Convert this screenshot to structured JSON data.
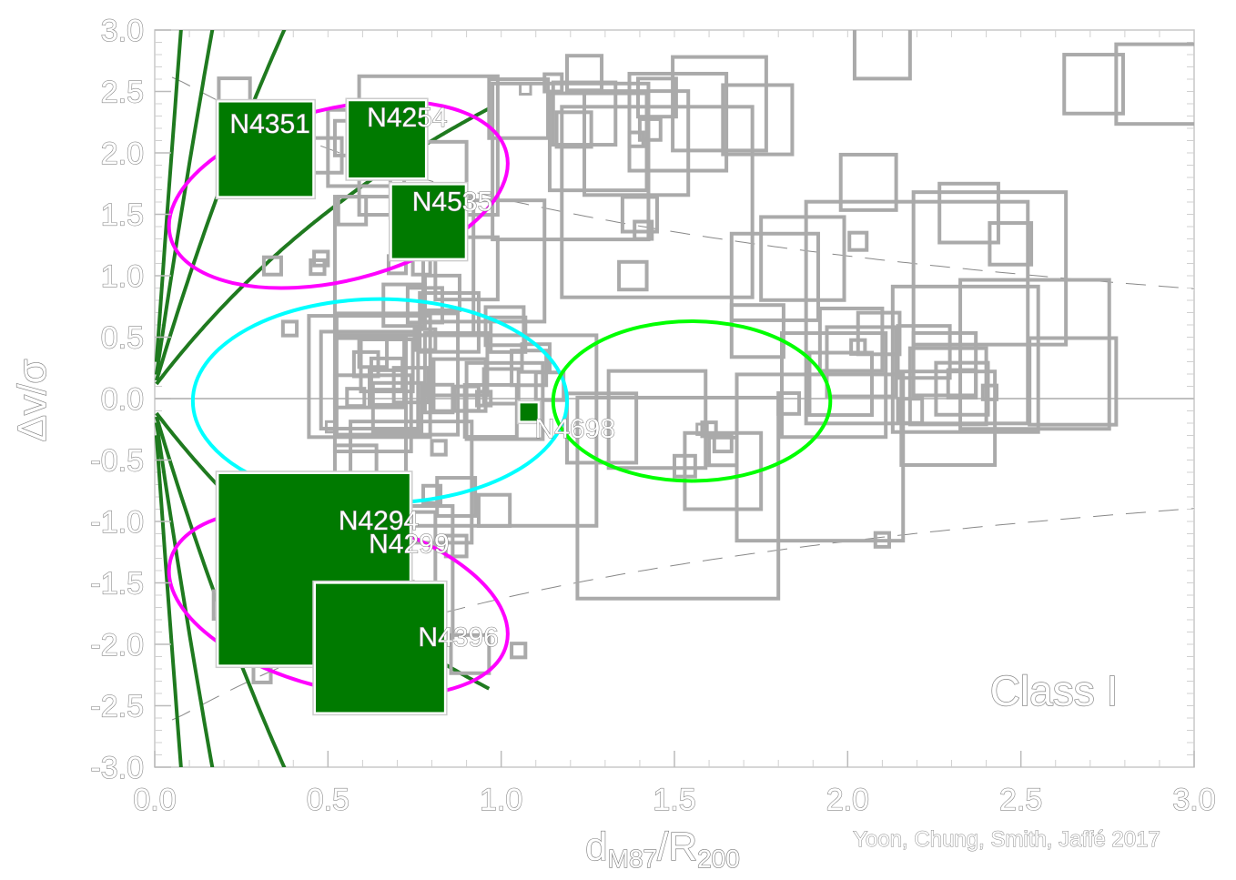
{
  "chart_data": {
    "type": "scatter",
    "title": "",
    "xlabel": "d_M87/R_200",
    "xlabel_main": "d",
    "xlabel_sub1": "M87",
    "xlabel_slash": "/R",
    "xlabel_sub2": "200",
    "ylabel": "Δv/σ",
    "xlim": [
      0.0,
      3.0
    ],
    "ylim": [
      -3.0,
      3.0
    ],
    "x_ticks": [
      "0.0",
      "0.5",
      "1.0",
      "1.5",
      "2.0",
      "2.5",
      "3.0"
    ],
    "y_ticks": [
      "3.0",
      "2.5",
      "2.0",
      "1.5",
      "1.0",
      "0.5",
      "0.0",
      "-0.5",
      "-1.0",
      "-1.5",
      "-2.0",
      "-2.5",
      "-3.0"
    ],
    "class_label": "Class I",
    "credit": "Yoon, Chung, Smith, Jaffé 2017",
    "colors": {
      "highlight": "#007a00",
      "background": "#aaaaaa",
      "caustic": "#1f7a1f",
      "ellipse_outer": "#ff00ff",
      "ellipse_center": "#00ffff",
      "ellipse_right": "#00ff00"
    },
    "highlighted": [
      {
        "label": "N4351",
        "x": 0.32,
        "y": 2.03,
        "size": 0.27
      },
      {
        "label": "N4254",
        "x": 0.67,
        "y": 2.11,
        "size": 0.22
      },
      {
        "label": "N4535",
        "x": 0.79,
        "y": 1.44,
        "size": 0.21
      },
      {
        "label": "N4698",
        "x": 1.08,
        "y": -0.11,
        "size": 0.05
      },
      {
        "label": "N4294",
        "x": 0.46,
        "y": -1.08,
        "size": 0.28
      },
      {
        "label": "N4299",
        "x": 0.46,
        "y": -1.39,
        "size": 0.55
      },
      {
        "label": "N4396",
        "x": 0.65,
        "y": -2.03,
        "size": 0.37
      }
    ],
    "others": [
      [
        0.23,
        2.48,
        0.09
      ],
      [
        0.37,
        1.98,
        0.05
      ],
      [
        0.49,
        1.98,
        0.1
      ],
      [
        0.57,
        1.53,
        0.08
      ],
      [
        0.57,
        2.12,
        0.1
      ],
      [
        0.61,
        2.04,
        0.22
      ],
      [
        0.34,
        1.08,
        0.05
      ],
      [
        0.47,
        1.07,
        0.04
      ],
      [
        0.48,
        1.14,
        0.04
      ],
      [
        0.39,
        0.57,
        0.04
      ],
      [
        0.72,
        1.08,
        0.4
      ],
      [
        0.7,
        1.09,
        0.05
      ],
      [
        0.77,
        1.08,
        0.05
      ],
      [
        0.83,
        0.86,
        0.1
      ],
      [
        0.78,
        0.76,
        0.1
      ],
      [
        0.72,
        0.76,
        0.12
      ],
      [
        0.85,
        0.62,
        0.17
      ],
      [
        0.79,
        1.78,
        0.22
      ],
      [
        0.79,
        2.06,
        0.4
      ],
      [
        0.9,
        1.06,
        0.18
      ],
      [
        0.95,
        1.12,
        0.35
      ],
      [
        0.82,
        1.43,
        0.08
      ],
      [
        0.81,
        1.53,
        0.06
      ],
      [
        1.05,
        2.36,
        0.17
      ],
      [
        1.07,
        2.52,
        0.03
      ],
      [
        1.15,
        2.57,
        0.05
      ],
      [
        1.28,
        2.09,
        0.28
      ],
      [
        1.2,
        1.93,
        0.45
      ],
      [
        1.24,
        2.65,
        0.1
      ],
      [
        1.24,
        2.32,
        0.18
      ],
      [
        1.21,
        2.19,
        0.1
      ],
      [
        1.39,
        2.08,
        0.3
      ],
      [
        1.39,
        2.11,
        0.04
      ],
      [
        1.43,
        2.19,
        0.06
      ],
      [
        1.45,
        1.6,
        0.55
      ],
      [
        1.4,
        1.5,
        0.1
      ],
      [
        1.41,
        1.37,
        0.05
      ],
      [
        1.45,
        2.45,
        0.11
      ],
      [
        1.51,
        2.25,
        0.28
      ],
      [
        1.63,
        2.4,
        0.27
      ],
      [
        1.74,
        2.27,
        0.2
      ],
      [
        1.38,
        1.0,
        0.08
      ],
      [
        1.01,
        0.59,
        0.11
      ],
      [
        0.87,
        0.28,
        0.18
      ],
      [
        0.78,
        0.48,
        0.06
      ],
      [
        0.7,
        0.2,
        0.35
      ],
      [
        0.62,
        0.15,
        0.28
      ],
      [
        0.67,
        0.27,
        0.15
      ],
      [
        0.67,
        0.2,
        0.09
      ],
      [
        0.63,
        0.37,
        0.08
      ],
      [
        0.62,
        0.21,
        0.2
      ],
      [
        0.61,
        0.28,
        0.07
      ],
      [
        0.58,
        0.01,
        0.05
      ],
      [
        0.62,
        0.18,
        0.35
      ],
      [
        0.74,
        0.11,
        0.1
      ],
      [
        0.82,
        0.0,
        0.08
      ],
      [
        0.82,
        -0.4,
        0.04
      ],
      [
        0.88,
        0.11,
        0.15
      ],
      [
        0.9,
        0.0,
        0.07
      ],
      [
        0.97,
        -0.1,
        0.15
      ],
      [
        0.95,
        0.0,
        0.04
      ],
      [
        1.0,
        0.1,
        0.1
      ],
      [
        1.0,
        -0.26,
        0.55
      ],
      [
        1.01,
        -0.02,
        0.22
      ],
      [
        1.02,
        0.52,
        0.1
      ],
      [
        1.08,
        0.25,
        0.1
      ],
      [
        1.1,
        0.33,
        0.08
      ],
      [
        1.14,
        0.1,
        0.08
      ],
      [
        0.63,
        -0.12,
        0.22
      ],
      [
        0.67,
        0.09,
        0.1
      ],
      [
        0.7,
        -0.07,
        0.14
      ],
      [
        0.51,
        -0.23,
        0.03
      ],
      [
        0.58,
        -0.55,
        0.12
      ],
      [
        0.74,
        -0.68,
        0.35
      ],
      [
        0.87,
        -0.8,
        0.11
      ],
      [
        0.98,
        -0.91,
        0.09
      ],
      [
        0.8,
        -0.78,
        0.05
      ],
      [
        0.87,
        -1.2,
        0.06
      ],
      [
        0.67,
        -1.41,
        0.38
      ],
      [
        0.68,
        -1.29,
        0.26
      ],
      [
        0.72,
        -1.56,
        0.05
      ],
      [
        0.21,
        -1.68,
        0.08
      ],
      [
        0.25,
        -1.63,
        0.06
      ],
      [
        0.25,
        -1.47,
        0.09
      ],
      [
        0.31,
        -2.24,
        0.05
      ],
      [
        0.91,
        -2.08,
        0.11
      ],
      [
        1.05,
        -2.05,
        0.04
      ],
      [
        1.29,
        -0.24,
        0.2
      ],
      [
        1.45,
        -0.17,
        0.28
      ],
      [
        1.51,
        -0.81,
        0.58
      ],
      [
        1.53,
        -0.55,
        0.06
      ],
      [
        1.58,
        -0.25,
        0.03
      ],
      [
        1.6,
        -0.25,
        0.04
      ],
      [
        1.64,
        -0.43,
        0.08
      ],
      [
        1.64,
        -0.36,
        0.05
      ],
      [
        1.64,
        -0.59,
        0.22
      ],
      [
        1.74,
        0.55,
        0.15
      ],
      [
        1.83,
        -0.04,
        0.06
      ],
      [
        1.92,
        -0.48,
        0.48
      ],
      [
        1.96,
        0.11,
        0.3
      ],
      [
        1.79,
        0.99,
        0.25
      ],
      [
        1.87,
        1.14,
        0.24
      ],
      [
        2.03,
        1.28,
        0.05
      ],
      [
        2.01,
        0.48,
        0.18
      ],
      [
        2.03,
        0.42,
        0.04
      ],
      [
        2.09,
        0.53,
        0.12
      ],
      [
        2.04,
        0.3,
        0.2
      ],
      [
        2.1,
        2.83,
        0.16
      ],
      [
        2.06,
        1.76,
        0.16
      ],
      [
        2.22,
        0.38,
        0.15
      ],
      [
        2.18,
        -0.1,
        0.07
      ],
      [
        2.2,
        0.7,
        0.64
      ],
      [
        2.28,
        0.28,
        0.18
      ],
      [
        2.29,
        0.1,
        0.22
      ],
      [
        2.29,
        -0.16,
        0.27
      ],
      [
        2.34,
        0.32,
        0.42
      ],
      [
        2.33,
        0.08,
        0.15
      ],
      [
        2.33,
        0.12,
        0.08
      ],
      [
        2.35,
        1.51,
        0.17
      ],
      [
        2.41,
        1.06,
        0.44
      ],
      [
        2.41,
        0.05,
        0.04
      ],
      [
        2.47,
        1.26,
        0.12
      ],
      [
        2.54,
        0.36,
        0.43
      ],
      [
        2.65,
        0.14,
        0.25
      ],
      [
        2.71,
        2.56,
        0.17
      ],
      [
        2.89,
        2.56,
        0.23
      ],
      [
        1.98,
        0.12,
        0.18
      ],
      [
        2.1,
        -1.15,
        0.04
      ]
    ],
    "ellipses": [
      {
        "name": "upper-outer",
        "cx": 0.53,
        "cy": 1.66,
        "rx": 0.5,
        "ry": 0.7,
        "angle": -14,
        "color": "ellipse_outer"
      },
      {
        "name": "lower-outer",
        "cx": 0.53,
        "cy": -1.66,
        "rx": 0.5,
        "ry": 0.7,
        "angle": 14,
        "color": "ellipse_outer"
      },
      {
        "name": "center",
        "cx": 0.65,
        "cy": -0.02,
        "rx": 0.54,
        "ry": 0.83,
        "angle": 0,
        "color": "ellipse_center"
      },
      {
        "name": "right",
        "cx": 1.55,
        "cy": -0.02,
        "rx": 0.4,
        "ry": 0.65,
        "angle": 0,
        "color": "ellipse_right"
      }
    ],
    "caustic_k": [
      0.37,
      0.95,
      1.92,
      4.0
    ]
  }
}
